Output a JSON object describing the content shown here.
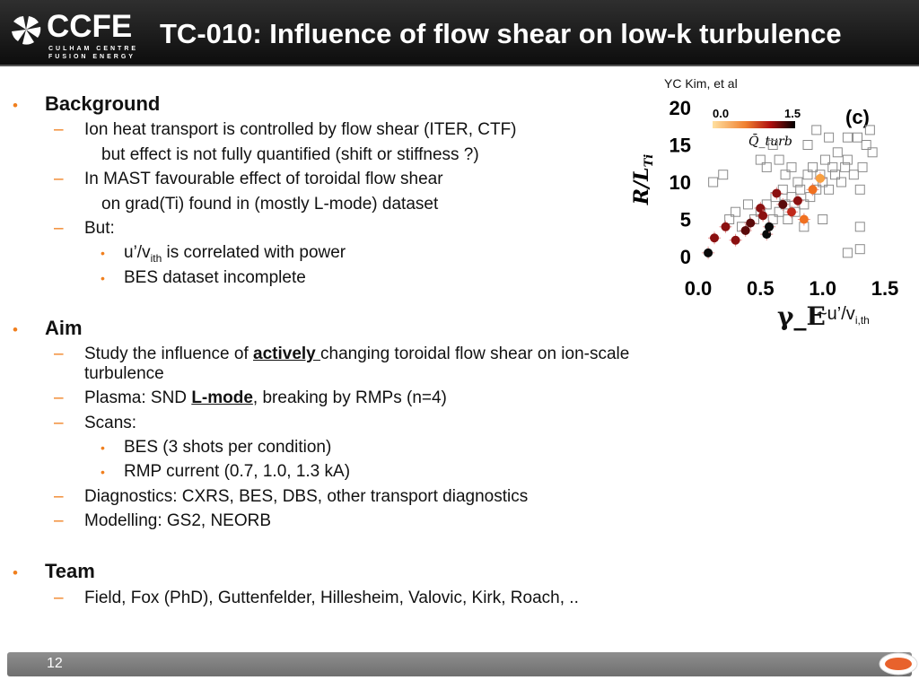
{
  "header": {
    "logo_text": "CCFE",
    "logo_sub1": "CULHAM CENTRE",
    "logo_sub2": "FUSION ENERGY",
    "title": "TC-010: Influence of flow shear on low-k turbulence"
  },
  "credit": "YC Kim, et al",
  "sections": {
    "background": {
      "heading": "Background",
      "item1": "Ion heat transport is controlled by flow shear (ITER, CTF)",
      "item1_cont": "but effect is not fully quantified (shift or stiffness ?)",
      "item2": "In MAST favourable effect of toroidal flow shear",
      "item2_cont": "on grad(Ti) found in (mostly L-mode) dataset",
      "item3": "But:",
      "sub1_pre": "u’/v",
      "sub1_sub": "ith",
      "sub1_post": " is correlated with power",
      "sub2": "BES dataset incomplete"
    },
    "aim": {
      "heading": "Aim",
      "item1_pre": "Study the influence of ",
      "item1_em": "actively ",
      "item1_post": "changing toroidal flow shear on ion-scale",
      "item1_cont": "turbulence",
      "item2_pre": "Plasma: SND ",
      "item2_em": "L-mode",
      "item2_post": ", breaking by RMPs (n=4)",
      "item3": "Scans:",
      "sub1": "BES (3 shots per condition)",
      "sub2": "RMP current (0.7, 1.0, 1.3 kA)",
      "item4": "Diagnostics: CXRS, BES, DBS, other transport diagnostics",
      "item5": "Modelling: GS2, NEORB"
    },
    "team": {
      "heading": "Team",
      "item1": "Field, Fox (PhD), Guttenfelder, Hillesheim, Valovic, Kirk, Roach, .."
    }
  },
  "chart_data": {
    "type": "scatter",
    "panel_label": "(c)",
    "ylabel": "R/L_Ti",
    "xlabel": "γ_E",
    "x_suffix_pre": "~u’/v",
    "x_suffix_sub": "i,th",
    "xlim": [
      0.0,
      1.5
    ],
    "ylim": [
      0,
      20
    ],
    "x_ticks": [
      "0.0",
      "0.5",
      "1.0",
      "1.5"
    ],
    "y_ticks": [
      "20",
      "15",
      "10",
      "5",
      "0"
    ],
    "colorbar": {
      "label": "Q̄_turb",
      "min": "0.0",
      "max": "1.5"
    },
    "open_points": [
      [
        0.25,
        5
      ],
      [
        0.3,
        6
      ],
      [
        0.35,
        4
      ],
      [
        0.4,
        7
      ],
      [
        0.45,
        5
      ],
      [
        0.5,
        6
      ],
      [
        0.55,
        7
      ],
      [
        0.6,
        5
      ],
      [
        0.62,
        8
      ],
      [
        0.65,
        6
      ],
      [
        0.68,
        9
      ],
      [
        0.7,
        7
      ],
      [
        0.72,
        5
      ],
      [
        0.75,
        8
      ],
      [
        0.78,
        6
      ],
      [
        0.8,
        10
      ],
      [
        0.82,
        9
      ],
      [
        0.85,
        7
      ],
      [
        0.88,
        11
      ],
      [
        0.9,
        8
      ],
      [
        0.92,
        12
      ],
      [
        0.95,
        9
      ],
      [
        0.98,
        11
      ],
      [
        1.0,
        10
      ],
      [
        1.02,
        13
      ],
      [
        1.05,
        9
      ],
      [
        1.08,
        12
      ],
      [
        1.1,
        11
      ],
      [
        1.12,
        14
      ],
      [
        1.15,
        10
      ],
      [
        1.18,
        12
      ],
      [
        1.2,
        13
      ],
      [
        1.25,
        11
      ],
      [
        1.28,
        16
      ],
      [
        1.3,
        9
      ],
      [
        1.32,
        12
      ],
      [
        1.35,
        15
      ],
      [
        1.38,
        17
      ],
      [
        1.4,
        14
      ],
      [
        0.6,
        15
      ],
      [
        0.65,
        13
      ],
      [
        0.75,
        12
      ],
      [
        0.88,
        15
      ],
      [
        0.95,
        17
      ],
      [
        1.05,
        16
      ],
      [
        1.2,
        16
      ],
      [
        0.12,
        10
      ],
      [
        0.2,
        11
      ],
      [
        1.2,
        0.5
      ],
      [
        1.3,
        4
      ],
      [
        0.55,
        12
      ],
      [
        0.85,
        4
      ],
      [
        0.7,
        11
      ],
      [
        1.0,
        5
      ],
      [
        0.5,
        13
      ],
      [
        1.3,
        1
      ]
    ],
    "filled_points": [
      {
        "x": 0.08,
        "y": 0.5,
        "q": 1.5
      },
      {
        "x": 0.13,
        "y": 2.5,
        "q": 1.2
      },
      {
        "x": 0.22,
        "y": 4,
        "q": 1.1
      },
      {
        "x": 0.3,
        "y": 2.2,
        "q": 1.1
      },
      {
        "x": 0.38,
        "y": 3.5,
        "q": 1.3
      },
      {
        "x": 0.42,
        "y": 4.5,
        "q": 1.4
      },
      {
        "x": 0.5,
        "y": 6.5,
        "q": 1.1
      },
      {
        "x": 0.52,
        "y": 5.5,
        "q": 1.2
      },
      {
        "x": 0.55,
        "y": 3,
        "q": 1.5
      },
      {
        "x": 0.57,
        "y": 4,
        "q": 1.5
      },
      {
        "x": 0.63,
        "y": 8.5,
        "q": 1.2
      },
      {
        "x": 0.68,
        "y": 7,
        "q": 1.3
      },
      {
        "x": 0.75,
        "y": 6,
        "q": 1.0
      },
      {
        "x": 0.8,
        "y": 7.5,
        "q": 1.2
      },
      {
        "x": 0.85,
        "y": 5,
        "q": 0.5
      },
      {
        "x": 0.92,
        "y": 9,
        "q": 0.5
      },
      {
        "x": 0.98,
        "y": 10.5,
        "q": 0.3
      }
    ]
  },
  "footer": {
    "page": "12"
  }
}
